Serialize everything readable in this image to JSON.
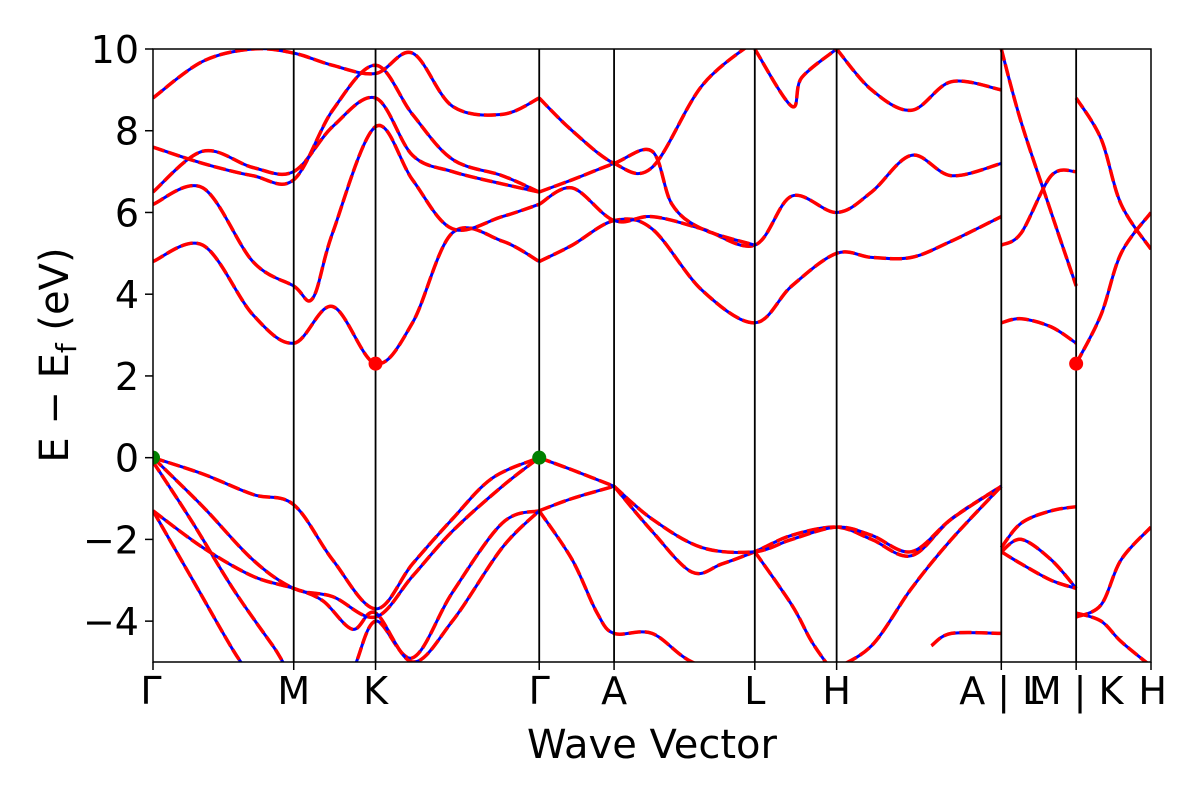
{
  "chart_data": {
    "type": "line",
    "xlabel": "Wave Vector",
    "ylabel": "E − E",
    "ylabel_sub": "f",
    "ylabel_unit": "(eV)",
    "ylim": [
      -5,
      10
    ],
    "yticks": [
      -4,
      -2,
      0,
      2,
      4,
      6,
      8,
      10
    ],
    "xlim": [
      0,
      1
    ],
    "high_symmetry_points": [
      {
        "label": "Γ",
        "x": 0.0
      },
      {
        "label": "M",
        "x": 0.141
      },
      {
        "label": "K",
        "x": 0.223
      },
      {
        "label": "Γ",
        "x": 0.387
      },
      {
        "label": "A",
        "x": 0.462
      },
      {
        "label": "L",
        "x": 0.603
      },
      {
        "label": "H",
        "x": 0.685
      },
      {
        "label": "A | L",
        "x": 0.85
      },
      {
        "label": "M | K",
        "x": 0.925
      },
      {
        "label": "H",
        "x": 1.0
      }
    ],
    "grid": false,
    "colors": {
      "band_solid": "#0000ff",
      "band_dashed": "#ff0000",
      "vbm": "#008000",
      "cbm": "#ff0000",
      "vline": "#000000"
    },
    "markers": [
      {
        "kind": "vbm",
        "x": 0.0,
        "y": 0.0
      },
      {
        "kind": "vbm",
        "x": 0.387,
        "y": 0.0
      },
      {
        "kind": "cbm",
        "x": 0.223,
        "y": 2.3
      },
      {
        "kind": "cbm",
        "x": 0.925,
        "y": 2.3
      }
    ],
    "series": [
      {
        "x": [
          0.0,
          0.05,
          0.1,
          0.141,
          0.18,
          0.223,
          0.26,
          0.3,
          0.34,
          0.387
        ],
        "values": [
          0.0,
          -0.4,
          -0.9,
          -1.15,
          -2.5,
          -3.7,
          -2.6,
          -1.5,
          -0.5,
          0.0
        ]
      },
      {
        "x": [
          0.0,
          0.05,
          0.1,
          0.141,
          0.18,
          0.223,
          0.26,
          0.3,
          0.35,
          0.387
        ],
        "values": [
          0.0,
          -1.2,
          -2.5,
          -3.2,
          -3.4,
          -3.9,
          -2.9,
          -1.8,
          -0.7,
          0.0
        ]
      },
      {
        "x": [
          0.0,
          0.04,
          0.08,
          0.12,
          0.141,
          0.18,
          0.2,
          0.223,
          0.26,
          0.3,
          0.35,
          0.387
        ],
        "values": [
          -0.1,
          -1.6,
          -3.2,
          -4.6,
          -5.3,
          -5.6,
          -5.2,
          -4.0,
          -4.9,
          -3.3,
          -1.6,
          -1.3
        ]
      },
      {
        "x": [
          0.0,
          0.05,
          0.1,
          0.141,
          0.17,
          0.2,
          0.223,
          0.26,
          0.3,
          0.35,
          0.387
        ],
        "values": [
          -1.3,
          -2.2,
          -2.9,
          -3.2,
          -3.5,
          -4.2,
          -3.8,
          -5.0,
          -4.0,
          -2.2,
          -1.3
        ]
      },
      {
        "x": [
          0.0,
          0.04,
          0.08,
          0.1
        ],
        "values": [
          -1.3,
          -3.0,
          -4.7,
          -5.4
        ]
      },
      {
        "x": [
          0.387,
          0.42,
          0.462
        ],
        "values": [
          0.0,
          -0.3,
          -0.7
        ]
      },
      {
        "x": [
          0.387,
          0.42,
          0.462
        ],
        "values": [
          -1.3,
          -1.0,
          -0.7
        ]
      },
      {
        "x": [
          0.387,
          0.42,
          0.445,
          0.462,
          0.5,
          0.54,
          0.6
        ],
        "values": [
          -1.3,
          -2.5,
          -3.8,
          -4.3,
          -4.3,
          -5.0,
          -5.5
        ]
      },
      {
        "x": [
          0.462,
          0.5,
          0.54,
          0.57,
          0.603,
          0.64,
          0.685,
          0.72,
          0.76,
          0.8,
          0.85
        ],
        "values": [
          -0.7,
          -1.8,
          -2.8,
          -2.6,
          -2.3,
          -1.9,
          -1.7,
          -2.0,
          -2.4,
          -1.5,
          -0.7
        ]
      },
      {
        "x": [
          0.462,
          0.5,
          0.55,
          0.603,
          0.64,
          0.685,
          0.72,
          0.76,
          0.8,
          0.85
        ],
        "values": [
          -0.7,
          -1.5,
          -2.2,
          -2.3,
          -2.0,
          -1.7,
          -1.9,
          -2.3,
          -1.5,
          -0.7
        ]
      },
      {
        "x": [
          0.603,
          0.64,
          0.66,
          0.68
        ],
        "values": [
          -2.3,
          -3.6,
          -4.5,
          -5.2
        ]
      },
      {
        "x": [
          0.68,
          0.72,
          0.76,
          0.8,
          0.85
        ],
        "values": [
          -5.2,
          -4.6,
          -3.2,
          -2.0,
          -0.7
        ]
      },
      {
        "x": [
          0.78,
          0.8,
          0.85
        ],
        "values": [
          -4.6,
          -4.3,
          -4.3
        ]
      },
      {
        "x": [
          0.85,
          0.87,
          0.9,
          0.925
        ],
        "values": [
          -2.3,
          -2.0,
          -2.5,
          -3.2
        ]
      },
      {
        "x": [
          0.85,
          0.87,
          0.9,
          0.925
        ],
        "values": [
          -2.3,
          -2.6,
          -3.0,
          -3.2
        ]
      },
      {
        "x": [
          0.85,
          0.87,
          0.9,
          0.925
        ],
        "values": [
          -2.2,
          -1.6,
          -1.3,
          -1.2
        ]
      },
      {
        "x": [
          0.925,
          0.95,
          0.97,
          1.0
        ],
        "values": [
          -3.8,
          -4.0,
          -4.5,
          -5.1
        ]
      },
      {
        "x": [
          0.925,
          0.95,
          0.97,
          1.0
        ],
        "values": [
          -3.9,
          -3.6,
          -2.5,
          -1.7
        ]
      },
      {
        "x": [
          0.0,
          0.05,
          0.1,
          0.141,
          0.18,
          0.223,
          0.26,
          0.3,
          0.35,
          0.387
        ],
        "values": [
          4.8,
          5.2,
          3.5,
          2.8,
          3.7,
          2.3,
          3.3,
          5.5,
          5.3,
          4.8
        ]
      },
      {
        "x": [
          0.0,
          0.05,
          0.1,
          0.141,
          0.16,
          0.18,
          0.223,
          0.26,
          0.3,
          0.35,
          0.387
        ],
        "values": [
          6.2,
          6.6,
          4.8,
          4.2,
          3.9,
          5.5,
          8.1,
          6.8,
          5.6,
          5.9,
          6.2
        ]
      },
      {
        "x": [
          0.387,
          0.42,
          0.462,
          0.5,
          0.55,
          0.603,
          0.64,
          0.685,
          0.72,
          0.76,
          0.8,
          0.85
        ],
        "values": [
          4.8,
          5.2,
          5.8,
          5.6,
          4.1,
          3.3,
          4.2,
          5.0,
          4.9,
          4.9,
          5.3,
          5.9
        ]
      },
      {
        "x": [
          0.387,
          0.42,
          0.462,
          0.5,
          0.55,
          0.603,
          0.64,
          0.685,
          0.72,
          0.76,
          0.8,
          0.85
        ],
        "values": [
          6.2,
          6.6,
          5.8,
          5.9,
          5.6,
          5.2,
          6.4,
          6.0,
          6.5,
          7.4,
          6.9,
          7.2
        ]
      },
      {
        "x": [
          0.0,
          0.05,
          0.1,
          0.141,
          0.18,
          0.223,
          0.26,
          0.3,
          0.35,
          0.387
        ],
        "values": [
          6.5,
          7.5,
          7.1,
          7.0,
          8.1,
          8.8,
          7.4,
          7.0,
          6.7,
          6.5
        ]
      },
      {
        "x": [
          0.0,
          0.05,
          0.1,
          0.141,
          0.18,
          0.223,
          0.26,
          0.3,
          0.35,
          0.387
        ],
        "values": [
          7.6,
          7.2,
          6.9,
          6.8,
          8.5,
          9.6,
          8.4,
          7.3,
          6.9,
          6.5
        ]
      },
      {
        "x": [
          0.0,
          0.05,
          0.1,
          0.141,
          0.18,
          0.223,
          0.26,
          0.3,
          0.35,
          0.387
        ],
        "values": [
          8.8,
          9.7,
          10.0,
          9.9,
          9.6,
          9.4,
          9.9,
          8.6,
          8.4,
          8.8
        ]
      },
      {
        "x": [
          0.387,
          0.42,
          0.462,
          0.5,
          0.52,
          0.55,
          0.603
        ],
        "values": [
          6.5,
          6.8,
          7.2,
          7.5,
          6.2,
          5.6,
          5.2
        ]
      },
      {
        "x": [
          0.387,
          0.42,
          0.462,
          0.5,
          0.55,
          0.603
        ],
        "values": [
          8.8,
          8.0,
          7.2,
          7.1,
          9.1,
          10.2
        ]
      },
      {
        "x": [
          0.603,
          0.64,
          0.65,
          0.685
        ],
        "values": [
          10.0,
          8.6,
          9.3,
          10.0
        ]
      },
      {
        "x": [
          0.685,
          0.72,
          0.76,
          0.8,
          0.85
        ],
        "values": [
          10.0,
          9.0,
          8.5,
          9.2,
          9.0
        ]
      },
      {
        "x": [
          0.85,
          0.87,
          0.9,
          0.925
        ],
        "values": [
          5.2,
          5.5,
          6.9,
          7.0
        ]
      },
      {
        "x": [
          0.85,
          0.87,
          0.9,
          0.925
        ],
        "values": [
          3.3,
          3.4,
          3.2,
          2.8
        ]
      },
      {
        "x": [
          0.85,
          0.87,
          0.9,
          0.925
        ],
        "values": [
          10.0,
          8.2,
          6.0,
          4.2
        ]
      },
      {
        "x": [
          0.925,
          0.95,
          0.97,
          1.0
        ],
        "values": [
          2.3,
          3.5,
          5.0,
          6.0
        ]
      },
      {
        "x": [
          0.925,
          0.95,
          0.97,
          1.0
        ],
        "values": [
          8.8,
          7.8,
          6.2,
          5.1
        ]
      }
    ]
  }
}
